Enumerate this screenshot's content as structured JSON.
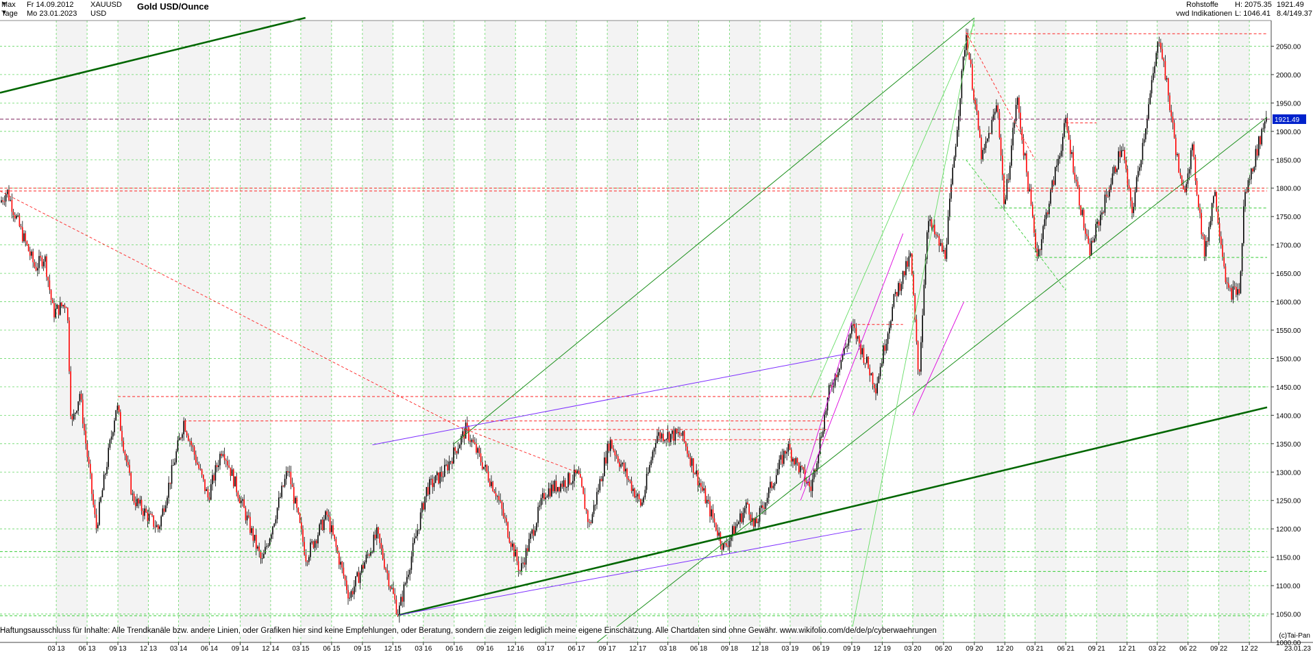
{
  "header": {
    "period_label": "Max",
    "interval_label": "Tage",
    "date_from": "Fr 14.09.2012",
    "date_to": "Mo 23.01.2023",
    "symbol": "XAUUSD",
    "currency": "USD",
    "title": "Gold USD/Ounce",
    "category": "Rohstoffe",
    "source": "vwd Indikationen",
    "high": "H: 2075.35",
    "low": "L: 1046.41",
    "last": "1921.49",
    "extra": "8.4/149.37"
  },
  "chart_data": {
    "type": "candlestick",
    "title": "Gold USD/Ounce",
    "x_range": [
      "2012-09-14",
      "2023-01-23"
    ],
    "ylim": [
      1000,
      2100
    ],
    "y_ticks": [
      1000,
      1050,
      1100,
      1150,
      1200,
      1250,
      1300,
      1350,
      1400,
      1450,
      1500,
      1550,
      1600,
      1650,
      1700,
      1750,
      1800,
      1850,
      1900,
      1950,
      2000,
      2050
    ],
    "y_tick_labels": [
      "1000.00",
      "1050.00",
      "1100.00",
      "1150.00",
      "1200.00",
      "1250.00",
      "1300.00",
      "1350.00",
      "1400.00",
      "1450.00",
      "1500.00",
      "1550.00",
      "1600.00",
      "1650.00",
      "1700.00",
      "1750.00",
      "1800.00",
      "1850.00",
      "1900.00",
      "1950.00",
      "2000.00",
      "2050.00"
    ],
    "x_ticks": [
      "03 13",
      "06 13",
      "09 13",
      "12 13",
      "03 14",
      "06 14",
      "09 14",
      "12 14",
      "03 15",
      "06 15",
      "09 15",
      "12 15",
      "03 16",
      "06 16",
      "09 16",
      "12 16",
      "03 17",
      "06 17",
      "09 17",
      "12 17",
      "03 18",
      "06 18",
      "09 18",
      "12 18",
      "03 19",
      "06 19",
      "09 19",
      "12 19",
      "03 20",
      "06 20",
      "09 20",
      "12 20",
      "03 21",
      "06 21",
      "09 21",
      "12 21",
      "03 22",
      "06 22",
      "09 22",
      "12 22"
    ],
    "x_end_label": "23.01.23",
    "current_value": 1921.49,
    "current_value_label": "1921.49",
    "price_path": [
      [
        "2012-09-14",
        1775
      ],
      [
        "2012-10-05",
        1795
      ],
      [
        "2012-11-15",
        1725
      ],
      [
        "2012-12-28",
        1660
      ],
      [
        "2013-01-25",
        1680
      ],
      [
        "2013-02-20",
        1580
      ],
      [
        "2013-04-02",
        1600
      ],
      [
        "2013-04-15",
        1380
      ],
      [
        "2013-05-10",
        1440
      ],
      [
        "2013-06-28",
        1200
      ],
      [
        "2013-08-28",
        1420
      ],
      [
        "2013-10-15",
        1255
      ],
      [
        "2013-12-31",
        1200
      ],
      [
        "2014-03-17",
        1390
      ],
      [
        "2014-05-28",
        1255
      ],
      [
        "2014-07-10",
        1345
      ],
      [
        "2014-11-05",
        1140
      ],
      [
        "2015-01-22",
        1305
      ],
      [
        "2015-03-17",
        1150
      ],
      [
        "2015-05-18",
        1225
      ],
      [
        "2015-07-24",
        1080
      ],
      [
        "2015-10-14",
        1190
      ],
      [
        "2015-12-17",
        1050
      ],
      [
        "2016-03-11",
        1270
      ],
      [
        "2016-05-02",
        1300
      ],
      [
        "2016-07-06",
        1375
      ],
      [
        "2016-10-04",
        1265
      ],
      [
        "2016-12-15",
        1125
      ],
      [
        "2017-02-27",
        1265
      ],
      [
        "2017-06-06",
        1295
      ],
      [
        "2017-07-10",
        1205
      ],
      [
        "2017-09-08",
        1355
      ],
      [
        "2017-12-12",
        1240
      ],
      [
        "2018-01-25",
        1365
      ],
      [
        "2018-04-11",
        1365
      ],
      [
        "2018-08-16",
        1165
      ],
      [
        "2018-10-26",
        1245
      ],
      [
        "2018-11-13",
        1200
      ],
      [
        "2019-02-20",
        1345
      ],
      [
        "2019-05-02",
        1270
      ],
      [
        "2019-06-25",
        1440
      ],
      [
        "2019-09-04",
        1555
      ],
      [
        "2019-11-12",
        1450
      ],
      [
        "2020-01-08",
        1610
      ],
      [
        "2020-02-24",
        1680
      ],
      [
        "2020-03-19",
        1460
      ],
      [
        "2020-04-14",
        1745
      ],
      [
        "2020-06-05",
        1680
      ],
      [
        "2020-08-07",
        2075
      ],
      [
        "2020-09-24",
        1850
      ],
      [
        "2020-11-09",
        1950
      ],
      [
        "2020-11-30",
        1765
      ],
      [
        "2021-01-06",
        1960
      ],
      [
        "2021-03-08",
        1680
      ],
      [
        "2021-06-01",
        1915
      ],
      [
        "2021-08-09",
        1685
      ],
      [
        "2021-11-16",
        1875
      ],
      [
        "2021-12-15",
        1755
      ],
      [
        "2022-03-08",
        2070
      ],
      [
        "2022-05-16",
        1785
      ],
      [
        "2022-06-13",
        1870
      ],
      [
        "2022-07-21",
        1680
      ],
      [
        "2022-08-18",
        1800
      ],
      [
        "2022-09-28",
        1615
      ],
      [
        "2022-11-03",
        1620
      ],
      [
        "2022-11-15",
        1780
      ],
      [
        "2023-01-23",
        1935
      ]
    ]
  },
  "disclaimer": "Haftungsausschluss für Inhalte: Alle Trendkanäle bzw. andere Linien, oder Grafiken hier sind keine Empfehlungen, oder Beratung, sondern die zeigen lediglich meine eigene Einschätzung. Alle Chartdaten sind ohne Gewähr.  www.wikifolio.com/de/de/p/cyberwaehrungen",
  "copyright": "(c)Tai-Pan",
  "colors": {
    "grid": "#33cc33",
    "support": "#006600",
    "channel": "#7b2bff",
    "resistance_dashed": "#ff2222",
    "current_price_line": "#0000aa",
    "current_price_tag": "#0022cc"
  }
}
